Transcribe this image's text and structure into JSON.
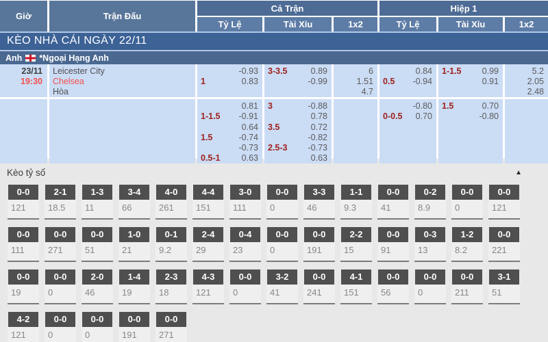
{
  "header": {
    "col_time": "Giờ",
    "col_match": "Trận Đấu",
    "group_full": "Cả Trận",
    "group_half": "Hiệp 1",
    "sub_hdp": "Tỷ Lệ",
    "sub_ou": "Tài Xỉu",
    "sub_1x2": "1x2"
  },
  "banner": {
    "title": "KÈO NHÀ CÁI NGÀY 22/11"
  },
  "league": {
    "country": "Anh",
    "flag": "england-flag",
    "name": "*Ngoại Hạng Anh"
  },
  "match": {
    "date": "23/11",
    "time": "19:30",
    "teams": {
      "home": "Leicester City",
      "away": "Chelsea",
      "draw": "Hòa"
    }
  },
  "colors": {
    "header_blue": "#4d6b94",
    "row_blue": "#cbdcf5",
    "banner_blue": "#3c6296",
    "red_text": "#f2504b",
    "handicap_red": "#9e221c",
    "score_box_gray": "#4f4f4f"
  },
  "odds_rows": [
    {
      "ft_hdp": {
        "l1": "",
        "v1": "-0.93",
        "l2": "1",
        "v2": "0.83"
      },
      "ft_ou": {
        "l1": "3-3.5",
        "v1": "0.89",
        "l2": "",
        "v2": "-0.99"
      },
      "ft_1x2": [
        "6",
        "1.51",
        "4.7"
      ],
      "h1_hdp": {
        "l1": "",
        "v1": "0.84",
        "l2": "0.5",
        "v2": "-0.94"
      },
      "h1_ou": {
        "l1": "1-1.5",
        "v1": "0.99",
        "l2": "",
        "v2": "0.91"
      },
      "h1_1x2": [
        "5.2",
        "2.05",
        "2.48"
      ]
    },
    {
      "ft_hdp": {
        "l1": "",
        "v1": "0.81",
        "l2": "1-1.5",
        "v2": "-0.91"
      },
      "ft_ou": {
        "l1": "3",
        "v1": "-0.88",
        "l2": "",
        "v2": "0.78"
      },
      "ft_1x2": [],
      "h1_hdp": {
        "l1": "",
        "v1": "-0.80",
        "l2": "0-0.5",
        "v2": "0.70"
      },
      "h1_ou": {
        "l1": "1.5",
        "v1": "0.70",
        "l2": "",
        "v2": "-0.80"
      },
      "h1_1x2": []
    },
    {
      "ft_hdp": {
        "l1": "",
        "v1": "0.64",
        "l2": "1.5",
        "v2": "-0.74"
      },
      "ft_ou": {
        "l1": "3.5",
        "v1": "0.72",
        "l2": "",
        "v2": "-0.82"
      },
      "ft_1x2": [],
      "h1_hdp": {
        "l1": "",
        "v1": "",
        "l2": "",
        "v2": ""
      },
      "h1_ou": {
        "l1": "",
        "v1": "",
        "l2": "",
        "v2": ""
      },
      "h1_1x2": []
    },
    {
      "ft_hdp": {
        "l1": "",
        "v1": "-0.73",
        "l2": "0.5-1",
        "v2": "0.63"
      },
      "ft_ou": {
        "l1": "2.5-3",
        "v1": "-0.73",
        "l2": "",
        "v2": "0.63"
      },
      "ft_1x2": [],
      "h1_hdp": {
        "l1": "",
        "v1": "",
        "l2": "",
        "v2": ""
      },
      "h1_ou": {
        "l1": "",
        "v1": "",
        "l2": "",
        "v2": ""
      },
      "h1_1x2": []
    }
  ],
  "score_section": {
    "title": "Kèo tỷ số",
    "collapse_icon": "▲",
    "rows": [
      [
        {
          "score": "0-0",
          "odds": "121"
        },
        {
          "score": "2-1",
          "odds": "18.5"
        },
        {
          "score": "1-3",
          "odds": "11"
        },
        {
          "score": "3-4",
          "odds": "66"
        },
        {
          "score": "4-0",
          "odds": "261"
        },
        {
          "score": "4-4",
          "odds": "151"
        },
        {
          "score": "3-0",
          "odds": "111"
        },
        {
          "score": "0-0",
          "odds": "0"
        },
        {
          "score": "3-3",
          "odds": "46"
        },
        {
          "score": "1-1",
          "odds": "9.3"
        },
        {
          "score": "0-0",
          "odds": "41"
        },
        {
          "score": "0-2",
          "odds": "8.9"
        },
        {
          "score": "0-0",
          "odds": "0"
        },
        {
          "score": "0-0",
          "odds": "121"
        }
      ],
      [
        {
          "score": "0-0",
          "odds": "111"
        },
        {
          "score": "0-0",
          "odds": "271"
        },
        {
          "score": "0-0",
          "odds": "51"
        },
        {
          "score": "1-0",
          "odds": "21"
        },
        {
          "score": "0-1",
          "odds": "9.2"
        },
        {
          "score": "2-4",
          "odds": "29"
        },
        {
          "score": "0-4",
          "odds": "23"
        },
        {
          "score": "0-0",
          "odds": "0"
        },
        {
          "score": "0-0",
          "odds": "191"
        },
        {
          "score": "2-2",
          "odds": "15"
        },
        {
          "score": "0-0",
          "odds": "91"
        },
        {
          "score": "0-3",
          "odds": "13"
        },
        {
          "score": "1-2",
          "odds": "8.2"
        },
        {
          "score": "0-0",
          "odds": "221"
        }
      ],
      [
        {
          "score": "0-0",
          "odds": "19"
        },
        {
          "score": "0-0",
          "odds": "0"
        },
        {
          "score": "2-0",
          "odds": "46"
        },
        {
          "score": "1-4",
          "odds": "19"
        },
        {
          "score": "2-3",
          "odds": "18"
        },
        {
          "score": "4-3",
          "odds": "121"
        },
        {
          "score": "0-0",
          "odds": "0"
        },
        {
          "score": "3-2",
          "odds": "41"
        },
        {
          "score": "0-0",
          "odds": "241"
        },
        {
          "score": "4-1",
          "odds": "151"
        },
        {
          "score": "0-0",
          "odds": "56"
        },
        {
          "score": "0-0",
          "odds": "0"
        },
        {
          "score": "0-0",
          "odds": "211"
        },
        {
          "score": "3-1",
          "odds": "51"
        }
      ],
      [
        {
          "score": "4-2",
          "odds": "121"
        },
        {
          "score": "0-0",
          "odds": "0"
        },
        {
          "score": "0-0",
          "odds": "0"
        },
        {
          "score": "0-0",
          "odds": "191"
        },
        {
          "score": "0-0",
          "odds": "271"
        }
      ]
    ]
  }
}
